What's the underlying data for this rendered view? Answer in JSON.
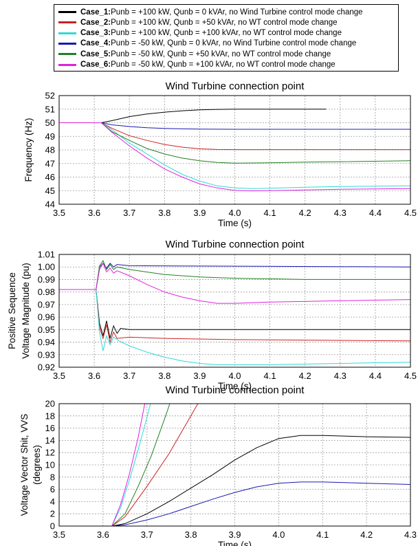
{
  "legend": {
    "entries": [
      {
        "name": "Case_1:",
        "text": " Punb = +100 kW, Qunb = 0 kVAr, no Wind Turbine control mode change",
        "color": "#000000"
      },
      {
        "name": "Case_2:",
        "text": " Punb = +100 kW, Qunb = +50 kVAr, no WT control mode change",
        "color": "#cc2020"
      },
      {
        "name": "Case_3:",
        "text": " Punb = +100 kW, Qunb = +100 kVAr, no WT control mode change",
        "color": "#30d8d8"
      },
      {
        "name": "Case_4:",
        "text": " Punb = -50 kW, Qunb = 0 kVAr, no Wind Turbine control mode change",
        "color": "#1818b0"
      },
      {
        "name": "Case_5:",
        "text": " Punb = -50 kW, Qunb = +50 kVAr, no WT control mode change",
        "color": "#208020"
      },
      {
        "name": "Case_6:",
        "text": " Punb = -50 kW, Qunb = +100 kVAr, no WT control mode change",
        "color": "#e020e0"
      }
    ]
  },
  "chart_data": [
    {
      "type": "line",
      "title": "Wind Turbine connection point",
      "xlabel": "Time (s)",
      "ylabel": [
        "Frequency (Hz)"
      ],
      "xlim": [
        3.5,
        4.5
      ],
      "ylim": [
        44,
        52
      ],
      "xticks": [
        "3.5",
        "3.6",
        "3.7",
        "3.8",
        "3.9",
        "4.0",
        "4.1",
        "4.2",
        "4.3",
        "4.4",
        "4.5"
      ],
      "yticks": [
        "44",
        "45",
        "46",
        "47",
        "48",
        "49",
        "50",
        "51",
        "52"
      ],
      "grid": true,
      "series": [
        {
          "case": 0,
          "color": "#000000",
          "x": [
            3.5,
            3.62,
            3.65,
            3.7,
            3.75,
            3.8,
            3.85,
            3.9,
            3.95,
            4.0,
            4.05,
            4.26
          ],
          "y": [
            50,
            50,
            50.15,
            50.45,
            50.65,
            50.78,
            50.88,
            50.95,
            50.98,
            51.0,
            51.0,
            51.0
          ]
        },
        {
          "case": 1,
          "color": "#cc2020",
          "x": [
            3.5,
            3.62,
            3.65,
            3.7,
            3.75,
            3.8,
            3.85,
            3.9,
            3.95,
            4.0,
            4.1,
            4.5
          ],
          "y": [
            50,
            50,
            49.6,
            49.05,
            48.7,
            48.4,
            48.2,
            48.08,
            48.03,
            48.02,
            48.02,
            48.02
          ]
        },
        {
          "case": 2,
          "color": "#30d8d8",
          "x": [
            3.5,
            3.62,
            3.65,
            3.7,
            3.75,
            3.8,
            3.85,
            3.9,
            3.95,
            4.0,
            4.05,
            4.1,
            4.2,
            4.3,
            4.5
          ],
          "y": [
            50,
            50,
            49.5,
            48.5,
            47.7,
            46.9,
            46.2,
            45.7,
            45.35,
            45.2,
            45.15,
            45.18,
            45.25,
            45.3,
            45.35
          ]
        },
        {
          "case": 3,
          "color": "#1818b0",
          "x": [
            3.5,
            3.62,
            3.65,
            3.7,
            3.75,
            3.8,
            3.9,
            4.0,
            4.5
          ],
          "y": [
            50,
            50,
            49.85,
            49.72,
            49.63,
            49.58,
            49.53,
            49.52,
            49.52
          ]
        },
        {
          "case": 4,
          "color": "#208020",
          "x": [
            3.5,
            3.62,
            3.65,
            3.7,
            3.75,
            3.8,
            3.85,
            3.9,
            3.95,
            4.0,
            4.1,
            4.2,
            4.5
          ],
          "y": [
            50,
            50,
            49.35,
            48.7,
            48.1,
            47.7,
            47.4,
            47.2,
            47.08,
            47.03,
            47.05,
            47.1,
            47.2
          ]
        },
        {
          "case": 5,
          "color": "#e020e0",
          "x": [
            3.5,
            3.62,
            3.65,
            3.7,
            3.75,
            3.8,
            3.85,
            3.9,
            3.95,
            4.0,
            4.05,
            4.1,
            4.2,
            4.3,
            4.5
          ],
          "y": [
            50,
            50,
            49.3,
            48.3,
            47.4,
            46.6,
            46.0,
            45.5,
            45.2,
            45.02,
            44.98,
            45.0,
            45.05,
            45.1,
            45.15
          ]
        }
      ]
    },
    {
      "type": "line",
      "title": "Wind Turbine connection point",
      "xlabel": "Time (s)",
      "ylabel": [
        "Positive Sequence",
        "Voltage Magnitude (pu)"
      ],
      "xlim": [
        3.5,
        4.5
      ],
      "ylim": [
        0.92,
        1.01
      ],
      "xticks": [
        "3.5",
        "3.6",
        "3.7",
        "3.8",
        "3.9",
        "4.0",
        "4.1",
        "4.2",
        "4.3",
        "4.4",
        "4.5"
      ],
      "yticks": [
        "0.92",
        "0.93",
        "0.94",
        "0.95",
        "0.96",
        "0.97",
        "0.98",
        "0.99",
        "1.00",
        "1.01"
      ],
      "grid": true,
      "series": [
        {
          "case": 0,
          "color": "#000000",
          "x": [
            3.5,
            3.605,
            3.615,
            3.625,
            3.635,
            3.645,
            3.655,
            3.665,
            3.675,
            3.7,
            4.5
          ],
          "y": [
            0.982,
            0.982,
            0.955,
            0.945,
            0.957,
            0.943,
            0.953,
            0.947,
            0.951,
            0.95,
            0.95
          ]
        },
        {
          "case": 1,
          "color": "#cc2020",
          "x": [
            3.5,
            3.605,
            3.615,
            3.625,
            3.635,
            3.645,
            3.655,
            3.665,
            3.7,
            3.8,
            4.0,
            4.5
          ],
          "y": [
            0.982,
            0.982,
            0.952,
            0.943,
            0.954,
            0.94,
            0.948,
            0.943,
            0.944,
            0.943,
            0.942,
            0.941
          ]
        },
        {
          "case": 2,
          "color": "#30d8d8",
          "x": [
            3.5,
            3.605,
            3.615,
            3.625,
            3.635,
            3.645,
            3.655,
            3.67,
            3.7,
            3.75,
            3.8,
            3.85,
            3.9,
            3.95,
            4.0,
            4.1,
            4.3,
            4.5
          ],
          "y": [
            0.982,
            0.982,
            0.948,
            0.933,
            0.945,
            0.938,
            0.944,
            0.941,
            0.937,
            0.932,
            0.928,
            0.925,
            0.923,
            0.922,
            0.922,
            0.922,
            0.923,
            0.924
          ]
        },
        {
          "case": 3,
          "color": "#1818b0",
          "x": [
            3.5,
            3.605,
            3.615,
            3.625,
            3.635,
            3.645,
            3.655,
            3.665,
            3.7,
            4.5
          ],
          "y": [
            0.982,
            0.982,
            1.0,
            1.003,
            0.999,
            1.003,
            1.0,
            1.002,
            1.001,
            1.0
          ]
        },
        {
          "case": 4,
          "color": "#208020",
          "x": [
            3.5,
            3.605,
            3.615,
            3.625,
            3.635,
            3.645,
            3.655,
            3.665,
            3.7,
            3.8,
            3.9,
            4.0,
            4.2,
            4.5
          ],
          "y": [
            0.982,
            0.982,
            1.001,
            1.005,
            0.998,
            1.002,
            0.998,
            1.0,
            0.998,
            0.994,
            0.992,
            0.991,
            0.99,
            0.99
          ]
        },
        {
          "case": 5,
          "color": "#e020e0",
          "x": [
            3.5,
            3.605,
            3.615,
            3.625,
            3.635,
            3.645,
            3.655,
            3.665,
            3.7,
            3.75,
            3.8,
            3.85,
            3.9,
            3.95,
            4.0,
            4.1,
            4.3,
            4.5
          ],
          "y": [
            0.982,
            0.982,
            0.998,
            1.003,
            0.996,
            0.999,
            0.995,
            0.997,
            0.993,
            0.986,
            0.98,
            0.976,
            0.973,
            0.971,
            0.971,
            0.972,
            0.973,
            0.974
          ]
        }
      ]
    },
    {
      "type": "line",
      "title": "Wind Turbine connection point",
      "xlabel": "Time (s)",
      "ylabel": [
        "Voltage Vector Shit, VVS",
        "(degrees)"
      ],
      "xlim": [
        3.5,
        4.3
      ],
      "ylim": [
        0,
        20
      ],
      "xticks": [
        "3.5",
        "3.6",
        "3.7",
        "3.8",
        "3.9",
        "4.0",
        "4.1",
        "4.2",
        "4.3"
      ],
      "yticks": [
        "0",
        "2",
        "4",
        "6",
        "8",
        "10",
        "12",
        "14",
        "16",
        "18",
        "20"
      ],
      "grid": true,
      "series": [
        {
          "case": 0,
          "color": "#000000",
          "x": [
            3.62,
            3.65,
            3.7,
            3.75,
            3.8,
            3.85,
            3.9,
            3.95,
            4.0,
            4.05,
            4.1,
            4.2,
            4.3
          ],
          "y": [
            0,
            0.4,
            2.0,
            4.0,
            6.2,
            8.4,
            10.8,
            12.8,
            14.3,
            14.8,
            14.8,
            14.6,
            14.5
          ]
        },
        {
          "case": 1,
          "color": "#cc2020",
          "x": [
            3.62,
            3.65,
            3.7,
            3.75,
            3.8,
            3.816
          ],
          "y": [
            0,
            1.5,
            6.5,
            11.8,
            18.0,
            20.0
          ]
        },
        {
          "case": 2,
          "color": "#30d8d8",
          "x": [
            3.62,
            3.64,
            3.66,
            3.68,
            3.7,
            3.708
          ],
          "y": [
            0,
            3.0,
            7.5,
            12.5,
            17.8,
            20.0
          ]
        },
        {
          "case": 3,
          "color": "#1818b0",
          "x": [
            3.62,
            3.65,
            3.7,
            3.75,
            3.8,
            3.85,
            3.9,
            3.95,
            4.0,
            4.05,
            4.1,
            4.2,
            4.3
          ],
          "y": [
            0,
            0.2,
            1.0,
            2.0,
            3.2,
            4.4,
            5.5,
            6.4,
            7.0,
            7.2,
            7.2,
            7.0,
            6.8
          ]
        },
        {
          "case": 4,
          "color": "#208020",
          "x": [
            3.62,
            3.65,
            3.68,
            3.71,
            3.74,
            3.752
          ],
          "y": [
            0,
            2.0,
            6.5,
            11.5,
            17.5,
            20.0
          ]
        },
        {
          "case": 5,
          "color": "#e020e0",
          "x": [
            3.62,
            3.64,
            3.66,
            3.68,
            3.695
          ],
          "y": [
            0,
            3.5,
            8.5,
            14.5,
            20.0
          ]
        }
      ]
    }
  ]
}
